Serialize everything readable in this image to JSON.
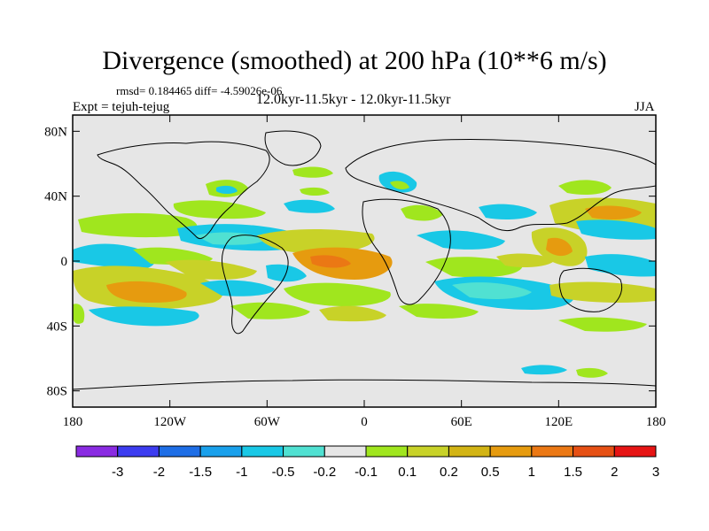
{
  "title": "Divergence (smoothed) at 200 hPa (10**6 m/s)",
  "stats": "rmsd= 0.184465 diff= -4.59026e-06",
  "experiment": "Expt = tejuh-tejug",
  "period": "12.0kyr-11.5kyr - 12.0kyr-11.5kyr",
  "season": "JJA",
  "map": {
    "lon_range": [
      -180,
      180
    ],
    "lat_range": [
      -90,
      90
    ],
    "y_ticks": [
      {
        "value": 80,
        "label": "80N"
      },
      {
        "value": 40,
        "label": "40N"
      },
      {
        "value": 0,
        "label": "0"
      },
      {
        "value": -40,
        "label": "40S"
      },
      {
        "value": -80,
        "label": "80S"
      }
    ],
    "x_ticks": [
      {
        "value": -180,
        "label": "180"
      },
      {
        "value": -120,
        "label": "120W"
      },
      {
        "value": -60,
        "label": "60W"
      },
      {
        "value": 0,
        "label": "0"
      },
      {
        "value": 60,
        "label": "60E"
      },
      {
        "value": 120,
        "label": "120E"
      },
      {
        "value": 180,
        "label": "180"
      }
    ],
    "background_color": "#e6e6e6"
  },
  "colorbar": {
    "colors": [
      "#8a2be2",
      "#3c3cf0",
      "#1e6ee6",
      "#19a0eb",
      "#19c8e6",
      "#50e1d2",
      "#e6e6e6",
      "#a0e61e",
      "#c8d228",
      "#d2b414",
      "#e69b0f",
      "#eb7814",
      "#e65014",
      "#e61414"
    ],
    "labels": [
      "-3",
      "-2",
      "-1.5",
      "-1",
      "-0.5",
      "-0.2",
      "-0.1",
      "0.1",
      "0.2",
      "0.5",
      "1",
      "1.5",
      "2",
      "3"
    ]
  },
  "chart_data": {
    "type": "heatmap",
    "title": "Divergence (smoothed) at 200 hPa (10**6 m/s)",
    "variable": "Divergence (smoothed) at 200 hPa",
    "units": "10**6 m/s",
    "lon_range": [
      -180,
      180
    ],
    "lat_range": [
      -90,
      90
    ],
    "contour_levels": [
      -3,
      -2,
      -1.5,
      -1,
      -0.5,
      -0.2,
      -0.1,
      0.1,
      0.2,
      0.5,
      1,
      1.5,
      2,
      3
    ],
    "regions": [
      {
        "lon": [
          -175,
          -125
        ],
        "lat": [
          8,
          16
        ],
        "value": 0.3
      },
      {
        "lon": [
          -170,
          -130
        ],
        "lat": [
          -6,
          4
        ],
        "value": -0.4
      },
      {
        "lon": [
          -180,
          -130
        ],
        "lat": [
          -15,
          -5
        ],
        "value": 0.4
      },
      {
        "lon": [
          -165,
          -140
        ],
        "lat": [
          -18,
          -8
        ],
        "value": 1.2
      },
      {
        "lon": [
          -175,
          -130
        ],
        "lat": [
          -30,
          -20
        ],
        "value": -0.4
      },
      {
        "lon": [
          -95,
          -30
        ],
        "lat": [
          10,
          20
        ],
        "value": -0.4
      },
      {
        "lon": [
          -40,
          -15
        ],
        "lat": [
          -2,
          6
        ],
        "value": 1.2
      },
      {
        "lon": [
          -110,
          -65
        ],
        "lat": [
          -18,
          -8
        ],
        "value": -0.3
      },
      {
        "lon": [
          60,
          100
        ],
        "lat": [
          8,
          16
        ],
        "value": -0.3
      },
      {
        "lon": [
          95,
          130
        ],
        "lat": [
          -4,
          12
        ],
        "value": 0.6
      },
      {
        "lon": [
          60,
          110
        ],
        "lat": [
          -18,
          -8
        ],
        "value": -0.5
      },
      {
        "lon": [
          115,
          175
        ],
        "lat": [
          28,
          40
        ],
        "value": 0.4
      }
    ]
  }
}
